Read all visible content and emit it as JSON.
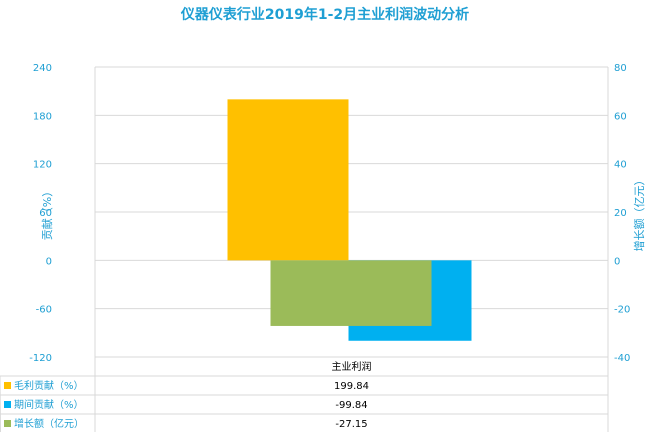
{
  "title": "仪器仪表行业2019年1-2月主业利润波动分析",
  "chart_data": {
    "type": "bar",
    "categories": [
      "主业利润"
    ],
    "series": [
      {
        "name": "毛利贡献（%）",
        "values": [
          199.84
        ],
        "color": "#ffc000",
        "axis": "left"
      },
      {
        "name": "期间贡献（%）",
        "values": [
          -99.84
        ],
        "color": "#00b0f0",
        "axis": "left"
      },
      {
        "name": "增长额（亿元）",
        "values": [
          -27.15
        ],
        "color": "#9bbb59",
        "axis": "right"
      }
    ],
    "value_labels": [
      "199.84",
      "-99.84",
      "-27.15"
    ],
    "ylabel": "贡献（%）",
    "y2label": "增长额（亿元）",
    "ylim": [
      -120,
      240
    ],
    "y2lim": [
      -40,
      80
    ],
    "yticks": [
      "-120",
      "-60",
      "0",
      "60",
      "120",
      "180",
      "240"
    ],
    "y2ticks": [
      "-40",
      "-20",
      "0",
      "20",
      "40",
      "60",
      "80"
    ],
    "grid": true,
    "data_table": true
  }
}
